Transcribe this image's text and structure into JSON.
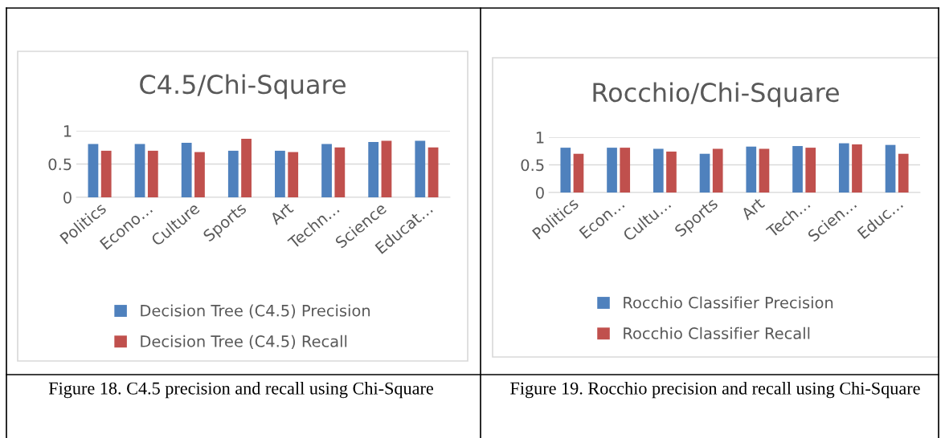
{
  "chart_data": [
    {
      "type": "bar",
      "title": "C4.5/Chi-Square",
      "categories": [
        "Politics",
        "Econo…",
        "Culture",
        "Sports",
        "Art",
        "Techn…",
        "Science",
        "Educat…"
      ],
      "series": [
        {
          "name": "Decision Tree (C4.5) Precision",
          "color": "#4f81bd",
          "values": [
            0.8,
            0.8,
            0.82,
            0.7,
            0.7,
            0.8,
            0.83,
            0.85
          ]
        },
        {
          "name": "Decision Tree (C4.5) Recall",
          "color": "#c0504d",
          "values": [
            0.7,
            0.7,
            0.68,
            0.88,
            0.68,
            0.75,
            0.85,
            0.75
          ]
        }
      ],
      "ylim": [
        0,
        1
      ],
      "yticks": [
        0,
        0.5,
        1
      ],
      "grid": "y",
      "legend": "bottom",
      "annotations": [
        "Figure 18. C4.5 precision and recall using Chi-Square"
      ]
    },
    {
      "type": "bar",
      "title": "Rocchio/Chi-Square",
      "categories": [
        "Politics",
        "Econ…",
        "Cultu…",
        "Sports",
        "Art",
        "Tech…",
        "Scien…",
        "Educ…"
      ],
      "series": [
        {
          "name": "Rocchio Classifier Precision",
          "color": "#4f81bd",
          "values": [
            0.81,
            0.81,
            0.79,
            0.7,
            0.83,
            0.84,
            0.89,
            0.86
          ]
        },
        {
          "name": "Rocchio Classifier Recall",
          "color": "#c0504d",
          "values": [
            0.7,
            0.81,
            0.74,
            0.79,
            0.79,
            0.81,
            0.87,
            0.7
          ]
        }
      ],
      "ylim": [
        0,
        1
      ],
      "yticks": [
        0,
        0.5,
        1
      ],
      "grid": "y",
      "legend": "bottom",
      "annotations": [
        "Figure 19. Rocchio precision and recall using Chi-Square"
      ]
    }
  ]
}
